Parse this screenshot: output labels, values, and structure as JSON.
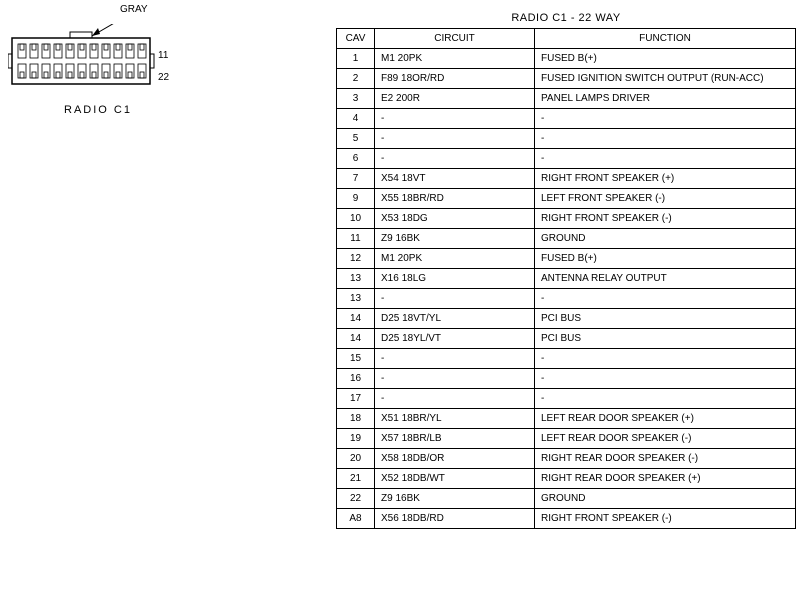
{
  "connector": {
    "gray_label": "GRAY",
    "caption": "RADIO C1",
    "pin_right_top": "11",
    "pin_right_bottom": "22"
  },
  "table": {
    "title": "RADIO C1 - 22 WAY",
    "headers": {
      "cav": "CAV",
      "circuit": "CIRCUIT",
      "function": "FUNCTION"
    },
    "rows": [
      {
        "cav": "1",
        "circuit": "M1 20PK",
        "function": "FUSED B(+)"
      },
      {
        "cav": "2",
        "circuit": "F89 18OR/RD",
        "function": "FUSED IGNITION SWITCH OUTPUT (RUN-ACC)"
      },
      {
        "cav": "3",
        "circuit": "E2 200R",
        "function": "PANEL LAMPS DRIVER"
      },
      {
        "cav": "4",
        "circuit": "-",
        "function": "-"
      },
      {
        "cav": "5",
        "circuit": "-",
        "function": "-"
      },
      {
        "cav": "6",
        "circuit": "-",
        "function": "-"
      },
      {
        "cav": "7",
        "circuit": "X54 18VT",
        "function": "RIGHT FRONT SPEAKER (+)"
      },
      {
        "cav": "9",
        "circuit": "X55 18BR/RD",
        "function": "LEFT FRONT SPEAKER (-)"
      },
      {
        "cav": "10",
        "circuit": "X53 18DG",
        "function": "RIGHT FRONT SPEAKER (-)"
      },
      {
        "cav": "11",
        "circuit": "Z9 16BK",
        "function": "GROUND"
      },
      {
        "cav": "12",
        "circuit": "M1 20PK",
        "function": "FUSED B(+)"
      },
      {
        "cav": "13",
        "circuit": "X16 18LG",
        "function": "ANTENNA RELAY OUTPUT"
      },
      {
        "cav": "13",
        "circuit": "-",
        "function": "-"
      },
      {
        "cav": "14",
        "circuit": "D25 18VT/YL",
        "function": "PCI BUS"
      },
      {
        "cav": "14",
        "circuit": "D25 18YL/VT",
        "function": "PCI BUS"
      },
      {
        "cav": "15",
        "circuit": "-",
        "function": "-"
      },
      {
        "cav": "16",
        "circuit": "-",
        "function": "-"
      },
      {
        "cav": "17",
        "circuit": "-",
        "function": "-"
      },
      {
        "cav": "18",
        "circuit": "X51 18BR/YL",
        "function": "LEFT REAR DOOR SPEAKER (+)"
      },
      {
        "cav": "19",
        "circuit": "X57 18BR/LB",
        "function": "LEFT REAR DOOR SPEAKER (-)"
      },
      {
        "cav": "20",
        "circuit": "X58 18DB/OR",
        "function": "RIGHT REAR DOOR SPEAKER (-)"
      },
      {
        "cav": "21",
        "circuit": "X52 18DB/WT",
        "function": "RIGHT REAR DOOR SPEAKER (+)"
      },
      {
        "cav": "22",
        "circuit": "Z9 16BK",
        "function": "GROUND"
      },
      {
        "cav": "A8",
        "circuit": "X56 18DB/RD",
        "function": "RIGHT FRONT SPEAKER (-)"
      }
    ]
  },
  "style": {
    "border_color": "#000000",
    "background": "#ffffff",
    "font_size_table": 10,
    "font_size_title": 11
  }
}
